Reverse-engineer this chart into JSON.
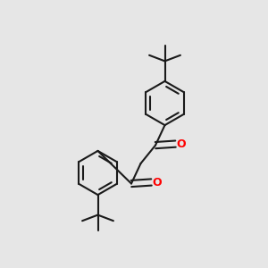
{
  "bg_color": "#e6e6e6",
  "bond_color": "#1a1a1a",
  "oxygen_color": "#ff0000",
  "line_width": 1.5,
  "dbo": 0.012,
  "figsize": [
    3.0,
    3.0
  ],
  "dpi": 100,
  "r_ring": 0.082
}
